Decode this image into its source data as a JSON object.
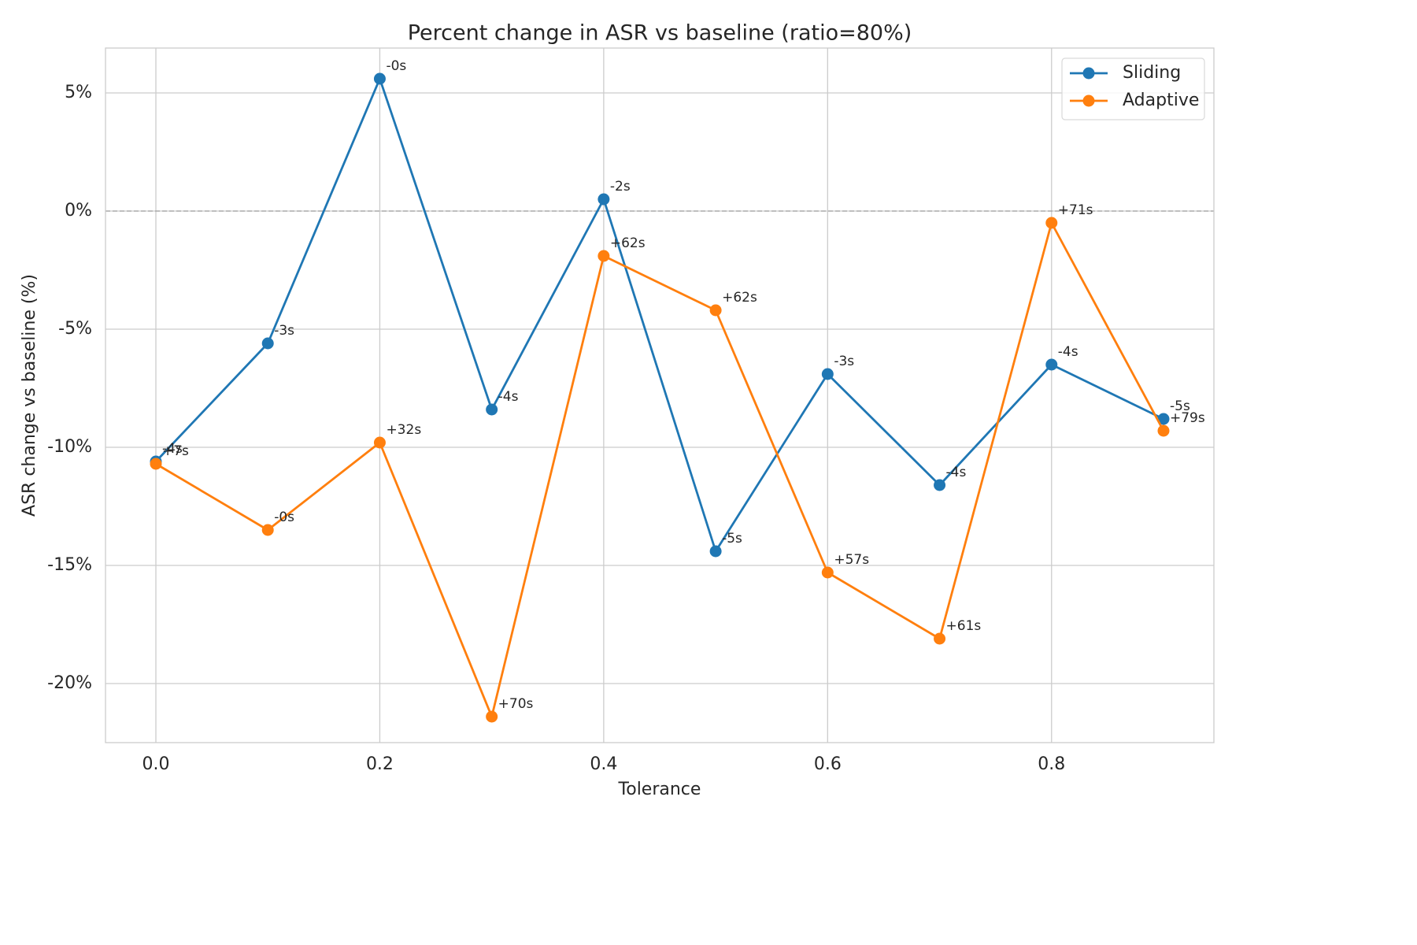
{
  "chart_data": {
    "type": "line",
    "title": "Percent change in ASR vs baseline (ratio=80%)",
    "xlabel": "Tolerance",
    "ylabel": "ASR change vs baseline (%)",
    "x": [
      0.0,
      0.1,
      0.2,
      0.3,
      0.4,
      0.5,
      0.6,
      0.7,
      0.8,
      0.9
    ],
    "xlim": [
      -0.045,
      0.945
    ],
    "ylim": [
      -22.5,
      6.9
    ],
    "x_ticks": [
      0.0,
      0.2,
      0.4,
      0.6,
      0.8
    ],
    "x_tick_labels": [
      "0.0",
      "0.2",
      "0.4",
      "0.6",
      "0.8"
    ],
    "y_ticks": [
      5,
      0,
      -5,
      -10,
      -15,
      -20
    ],
    "y_tick_labels": [
      "5%",
      "0%",
      "-5%",
      "-10%",
      "-15%",
      "-20%"
    ],
    "grid": true,
    "reference_line": {
      "y": 0,
      "style": "dashed"
    },
    "legend": "top-right",
    "series": [
      {
        "name": "Sliding",
        "color": "#1f77b4",
        "values": [
          -10.6,
          -5.6,
          5.6,
          -8.4,
          0.5,
          -14.4,
          -6.9,
          -11.6,
          -6.5,
          -8.8
        ],
        "labels": [
          "-4s",
          "-3s",
          "-0s",
          "-4s",
          "-2s",
          "-5s",
          "-3s",
          "-4s",
          "-4s",
          "-5s"
        ]
      },
      {
        "name": "Adaptive",
        "color": "#ff7f0e",
        "values": [
          -10.7,
          -13.5,
          -9.8,
          -21.4,
          -1.9,
          -4.2,
          -15.3,
          -18.1,
          -0.5,
          -9.3
        ],
        "labels": [
          "+7s",
          "-0s",
          "+32s",
          "+70s",
          "+62s",
          "+62s",
          "+57s",
          "+61s",
          "+71s",
          "+79s"
        ]
      }
    ]
  }
}
